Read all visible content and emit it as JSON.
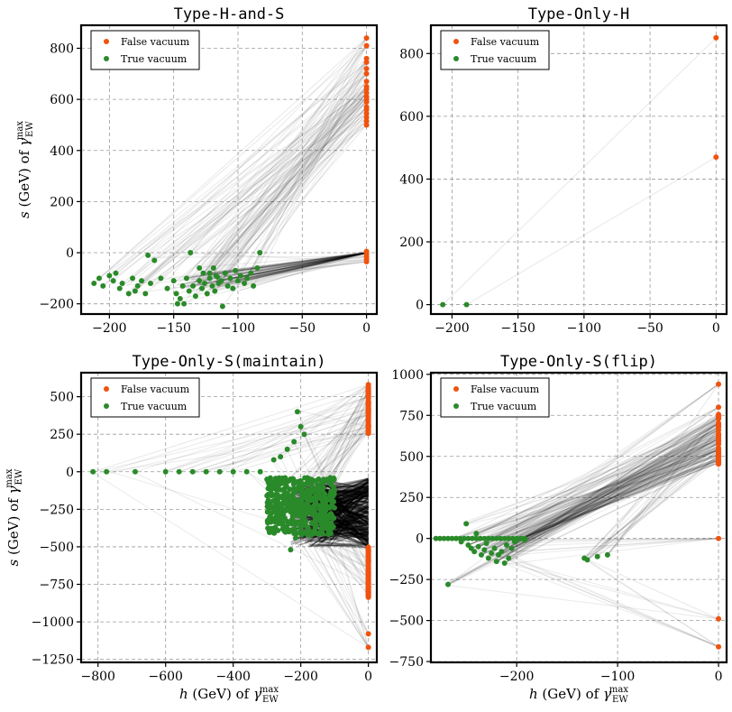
{
  "figure": {
    "legend_false_label": "False vacuum",
    "legend_true_label": "True vacuum",
    "false_color": "#f0530f",
    "true_color": "#2a8a2a",
    "ylabel": "s (GeV) of γ_EW^max",
    "xlabel": "h (GeV) of γ_EW^max"
  },
  "chart_data": [
    {
      "id": "hs",
      "type": "scatter",
      "title": "Type-H-and-S",
      "xlim": [
        -222,
        8
      ],
      "ylim": [
        -240,
        890
      ],
      "xticks": [
        -200,
        -150,
        -100,
        -50,
        0
      ],
      "xtick_labels": [
        "−200",
        "−150",
        "−100",
        "−50",
        "0"
      ],
      "yticks": [
        -200,
        0,
        200,
        400,
        600,
        800
      ],
      "ytick_labels": [
        "−200",
        "0",
        "200",
        "400",
        "600",
        "800"
      ],
      "ylabel": "s (GeV) of γ_EW^max",
      "xlabel": "",
      "legend": "top-left",
      "grid": true,
      "series": [
        {
          "name": "False vacuum",
          "points": [
            [
              0,
              840
            ],
            [
              0,
              810
            ],
            [
              0,
              760
            ],
            [
              0,
              745
            ],
            [
              0,
              720
            ],
            [
              0,
              700
            ],
            [
              0,
              670
            ],
            [
              0,
              650
            ],
            [
              0,
              640
            ],
            [
              0,
              625
            ],
            [
              0,
              610
            ],
            [
              0,
              600
            ],
            [
              0,
              590
            ],
            [
              0,
              570
            ],
            [
              0,
              560
            ],
            [
              0,
              545
            ],
            [
              0,
              530
            ],
            [
              0,
              515
            ],
            [
              0,
              500
            ],
            [
              0,
              5
            ],
            [
              0,
              -5
            ],
            [
              0,
              -15
            ],
            [
              0,
              -25
            ],
            [
              0,
              -35
            ]
          ]
        },
        {
          "name": "True vacuum",
          "points": [
            [
              -212,
              -120
            ],
            [
              -208,
              -100
            ],
            [
              -205,
              -130
            ],
            [
              -200,
              -90
            ],
            [
              -197,
              -110
            ],
            [
              -195,
              -80
            ],
            [
              -192,
              -140
            ],
            [
              -190,
              -120
            ],
            [
              -185,
              -160
            ],
            [
              -182,
              -100
            ],
            [
              -180,
              -150
            ],
            [
              -178,
              -130
            ],
            [
              -175,
              -110
            ],
            [
              -172,
              -160
            ],
            [
              -170,
              -10
            ],
            [
              -168,
              -120
            ],
            [
              -165,
              -30
            ],
            [
              -160,
              -100
            ],
            [
              -155,
              -140
            ],
            [
              -150,
              -110
            ],
            [
              -148,
              -160
            ],
            [
              -147,
              -200
            ],
            [
              -145,
              -180
            ],
            [
              -143,
              -130
            ],
            [
              -142,
              -200
            ],
            [
              -140,
              -100
            ],
            [
              -138,
              -150
            ],
            [
              -137,
              0
            ],
            [
              -135,
              -130
            ],
            [
              -133,
              -170
            ],
            [
              -130,
              -110
            ],
            [
              -128,
              -140
            ],
            [
              -126,
              -120
            ],
            [
              -124,
              -160
            ],
            [
              -122,
              -100
            ],
            [
              -120,
              -130
            ],
            [
              -118,
              -150
            ],
            [
              -117,
              -90
            ],
            [
              -115,
              -120
            ],
            [
              -113,
              -110
            ],
            [
              -112,
              -210
            ],
            [
              -110,
              -80
            ],
            [
              -108,
              -130
            ],
            [
              -106,
              -100
            ],
            [
              -104,
              -140
            ],
            [
              -102,
              -70
            ],
            [
              -100,
              -110
            ],
            [
              -98,
              -90
            ],
            [
              -95,
              -120
            ],
            [
              -93,
              -100
            ],
            [
              -90,
              -80
            ],
            [
              -88,
              -130
            ],
            [
              -85,
              -60
            ],
            [
              -83,
              0
            ],
            [
              -130,
              -60
            ],
            [
              -127,
              -80
            ],
            [
              -122,
              -80
            ],
            [
              -119,
              -60
            ],
            [
              -116,
              -95
            ]
          ]
        }
      ]
    },
    {
      "id": "h",
      "type": "scatter",
      "title": "Type-Only-H",
      "xlim": [
        -216,
        8
      ],
      "ylim": [
        -30,
        890
      ],
      "xticks": [
        -200,
        -150,
        -100,
        -50,
        0
      ],
      "xtick_labels": [
        "−200",
        "−150",
        "−100",
        "−50",
        "0"
      ],
      "yticks": [
        0,
        200,
        400,
        600,
        800
      ],
      "ytick_labels": [
        "0",
        "200",
        "400",
        "600",
        "800"
      ],
      "ylabel": "",
      "xlabel": "",
      "legend": "top-left",
      "grid": true,
      "series": [
        {
          "name": "False vacuum",
          "points": [
            [
              0,
              850
            ],
            [
              0,
              470
            ]
          ]
        },
        {
          "name": "True vacuum",
          "points": [
            [
              -207,
              0
            ],
            [
              -189,
              0
            ]
          ]
        }
      ]
    },
    {
      "id": "sm",
      "type": "scatter",
      "title": "Type-Only-S(maintain)",
      "xlim": [
        -850,
        25
      ],
      "ylim": [
        -1270,
        660
      ],
      "xticks": [
        -800,
        -600,
        -400,
        -200,
        0
      ],
      "xtick_labels": [
        "−800",
        "−600",
        "−400",
        "−200",
        "0"
      ],
      "yticks": [
        -1250,
        -1000,
        -750,
        -500,
        -250,
        0,
        250,
        500
      ],
      "ytick_labels": [
        "−1250",
        "−1000",
        "−750",
        "−500",
        "−250",
        "0",
        "250",
        "500"
      ],
      "ylabel": "s (GeV) of γ_EW^max",
      "xlabel": "h (GeV) of γ_EW^max",
      "legend": "top-left",
      "grid": true,
      "series": [
        {
          "name": "False vacuum",
          "points": [
            [
              0,
              580
            ],
            [
              0,
              540
            ],
            [
              0,
              500
            ],
            [
              0,
              460
            ],
            [
              0,
              420
            ],
            [
              0,
              380
            ],
            [
              0,
              340
            ],
            [
              0,
              300
            ],
            [
              0,
              260
            ],
            [
              0,
              -520
            ],
            [
              0,
              -580
            ],
            [
              0,
              -640
            ],
            [
              0,
              -700
            ],
            [
              0,
              -760
            ],
            [
              0,
              -820
            ],
            [
              0,
              -1080
            ],
            [
              0,
              -1170
            ]
          ]
        },
        {
          "name": "True vacuum",
          "points": [
            [
              -815,
              0
            ],
            [
              -775,
              0
            ],
            [
              -690,
              0
            ],
            [
              -600,
              0
            ],
            [
              -560,
              0
            ],
            [
              -520,
              0
            ],
            [
              -480,
              0
            ],
            [
              -440,
              0
            ],
            [
              -400,
              0
            ],
            [
              -360,
              0
            ],
            [
              -320,
              0
            ],
            [
              -300,
              -50
            ],
            [
              -290,
              -150
            ],
            [
              -280,
              -250
            ],
            [
              -275,
              -80
            ],
            [
              -270,
              -200
            ],
            [
              -265,
              -300
            ],
            [
              -260,
              -120
            ],
            [
              -255,
              -350
            ],
            [
              -250,
              -180
            ],
            [
              -245,
              -260
            ],
            [
              -240,
              -60
            ],
            [
              -235,
              -400
            ],
            [
              -230,
              -220
            ],
            [
              -225,
              -330
            ],
            [
              -220,
              -140
            ],
            [
              -215,
              -440
            ],
            [
              -210,
              -280
            ],
            [
              -205,
              -190
            ],
            [
              -200,
              -360
            ],
            [
              -195,
              -100
            ],
            [
              -190,
              -300
            ],
            [
              -185,
              -230
            ],
            [
              -180,
              -420
            ],
            [
              -175,
              -160
            ],
            [
              -170,
              -270
            ],
            [
              -165,
              -340
            ],
            [
              -160,
              -120
            ],
            [
              -155,
              -210
            ],
            [
              -150,
              -300
            ],
            [
              -145,
              -170
            ],
            [
              -140,
              -250
            ],
            [
              -135,
              -130
            ],
            [
              -130,
              -200
            ],
            [
              -125,
              -180
            ],
            [
              -210,
              400
            ],
            [
              -200,
              300
            ],
            [
              -190,
              250
            ],
            [
              -220,
              200
            ],
            [
              -240,
              150
            ],
            [
              -260,
              100
            ],
            [
              -280,
              80
            ],
            [
              -230,
              -520
            ]
          ]
        }
      ]
    },
    {
      "id": "sf",
      "type": "scatter",
      "title": "Type-Only-S(flip)",
      "xlim": [
        -285,
        8
      ],
      "ylim": [
        -755,
        1010
      ],
      "xticks": [
        -200,
        -100,
        0
      ],
      "xtick_labels": [
        "−200",
        "−100",
        "0"
      ],
      "yticks": [
        -750,
        -500,
        -250,
        0,
        250,
        500,
        750,
        1000
      ],
      "ytick_labels": [
        "−750",
        "−500",
        "−250",
        "0",
        "250",
        "500",
        "750",
        "1000"
      ],
      "ylabel": "",
      "xlabel": "h (GeV) of γ_EW^max",
      "legend": "top-left",
      "grid": true,
      "series": [
        {
          "name": "False vacuum",
          "points": [
            [
              0,
              940
            ],
            [
              0,
              800
            ],
            [
              0,
              740
            ],
            [
              0,
              700
            ],
            [
              0,
              660
            ],
            [
              0,
              620
            ],
            [
              0,
              580
            ],
            [
              0,
              540
            ],
            [
              0,
              510
            ],
            [
              0,
              480
            ],
            [
              0,
              460
            ],
            [
              0,
              0
            ],
            [
              0,
              -490
            ],
            [
              0,
              -660
            ]
          ]
        },
        {
          "name": "True vacuum",
          "points": [
            [
              -268,
              -280
            ],
            [
              -260,
              0
            ],
            [
              -255,
              -20
            ],
            [
              -250,
              90
            ],
            [
              -248,
              -40
            ],
            [
              -245,
              -60
            ],
            [
              -242,
              -80
            ],
            [
              -240,
              30
            ],
            [
              -238,
              -50
            ],
            [
              -235,
              -100
            ],
            [
              -232,
              -70
            ],
            [
              -230,
              -30
            ],
            [
              -228,
              -120
            ],
            [
              -225,
              -90
            ],
            [
              -222,
              -60
            ],
            [
              -220,
              -140
            ],
            [
              -218,
              -100
            ],
            [
              -215,
              -80
            ],
            [
              -212,
              -150
            ],
            [
              -210,
              -40
            ],
            [
              -208,
              -120
            ],
            [
              -205,
              -60
            ],
            [
              -202,
              -20
            ],
            [
              -200,
              -10
            ],
            [
              -195,
              0
            ],
            [
              -192,
              -10
            ],
            [
              -133,
              -120
            ],
            [
              -130,
              -130
            ],
            [
              -120,
              -110
            ],
            [
              -110,
              -100
            ]
          ]
        }
      ]
    }
  ]
}
